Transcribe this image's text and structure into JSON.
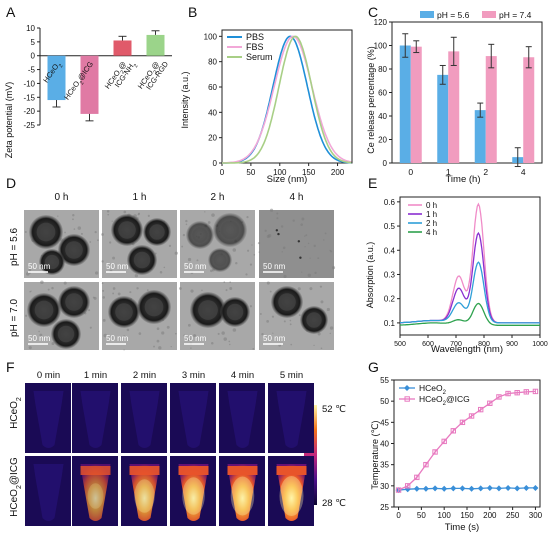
{
  "panel_letters": [
    "A",
    "B",
    "C",
    "D",
    "E",
    "F",
    "G"
  ],
  "colors": {
    "blue": "#5aaee6",
    "pink": "#e07aa4",
    "red": "#e05a6a",
    "green": "#9bd48a",
    "pbs": "#1f8fd8",
    "fbs": "#f2a8d8",
    "serum": "#a8cf86",
    "pink_bar": "#f19cbf",
    "h0": "#f08cc8",
    "h1": "#8a2fd0",
    "h2": "#2f9fd8",
    "h4": "#2ea24e",
    "heceo2_line": "#3a8fd8",
    "icg_line": "#e87ac0"
  },
  "chart_data": [
    {
      "panel": "A",
      "type": "bar",
      "ylabel": "Zeta potential (mV)",
      "ylim": [
        -25,
        10
      ],
      "yticks": [
        10,
        5,
        0,
        -5,
        -10,
        -15,
        -20,
        -25
      ],
      "categories": [
        "HCeO2",
        "HCeO2@ICG",
        "HCeO2@ ICG-NH2",
        "HCeO2@ ICG-RGD"
      ],
      "values": [
        -16,
        -21,
        5.5,
        7.5
      ],
      "errors": [
        2.5,
        2.5,
        1.5,
        1.5
      ],
      "grid": false
    },
    {
      "panel": "B",
      "type": "line",
      "xlabel": "Size (nm)",
      "ylabel": "Intensity (a.u.)",
      "xlim": [
        0,
        225
      ],
      "ylim": [
        0,
        105
      ],
      "xticks": [
        0,
        50,
        100,
        150,
        200
      ],
      "yticks": [
        0,
        20,
        40,
        60,
        80,
        100
      ],
      "legend_position": "top-left",
      "series": [
        {
          "name": "PBS",
          "peak": 118,
          "width": 42
        },
        {
          "name": "FBS",
          "peak": 123,
          "width": 46
        },
        {
          "name": "Serum",
          "peak": 127,
          "width": 40
        }
      ]
    },
    {
      "panel": "C",
      "type": "bar",
      "xlabel": "Time (h)",
      "ylabel": "Ce release percentage (%)",
      "ylim": [
        0,
        120
      ],
      "yticks": [
        0,
        20,
        40,
        60,
        80,
        100,
        120
      ],
      "categories": [
        "0",
        "1",
        "2",
        "4"
      ],
      "legend_position": "top",
      "series": [
        {
          "name": "pH = 5.6",
          "values": [
            100,
            75,
            45,
            5
          ],
          "errors": [
            10,
            8,
            6,
            8
          ]
        },
        {
          "name": "pH = 7.4",
          "values": [
            99,
            95,
            91,
            90
          ],
          "errors": [
            5,
            12,
            10,
            9
          ]
        }
      ]
    },
    {
      "panel": "E",
      "type": "line",
      "xlabel": "Wavelength (nm)",
      "ylabel": "Absorption (a.u.)",
      "xlim": [
        500,
        1000
      ],
      "ylim": [
        0.05,
        0.62
      ],
      "xticks": [
        500,
        600,
        700,
        800,
        900,
        1000
      ],
      "yticks": [
        0.1,
        0.2,
        0.3,
        0.4,
        0.5,
        0.6
      ],
      "legend_position": "top-left",
      "series": [
        {
          "name": "0 h",
          "base": 0.1,
          "peak": 0.59,
          "shoulder": 0.29
        },
        {
          "name": "1 h",
          "base": 0.1,
          "peak": 0.47,
          "shoulder": 0.24
        },
        {
          "name": "2 h",
          "base": 0.1,
          "peak": 0.35,
          "shoulder": 0.18
        },
        {
          "name": "4 h",
          "base": 0.09,
          "peak": 0.18,
          "shoulder": 0.11
        }
      ]
    },
    {
      "panel": "G",
      "type": "line",
      "xlabel": "Time (s)",
      "ylabel": "Temperature (℃)",
      "xlim": [
        -10,
        310
      ],
      "ylim": [
        25,
        55
      ],
      "xticks": [
        0,
        50,
        100,
        150,
        200,
        250,
        300
      ],
      "yticks": [
        25,
        30,
        35,
        40,
        45,
        50,
        55
      ],
      "legend_position": "top-left",
      "x": [
        0,
        20,
        40,
        60,
        80,
        100,
        120,
        140,
        160,
        180,
        200,
        220,
        240,
        260,
        280,
        300
      ],
      "series": [
        {
          "name": "HCeO2",
          "values": [
            29,
            29.2,
            29.3,
            29.3,
            29.4,
            29.3,
            29.4,
            29.4,
            29.3,
            29.4,
            29.5,
            29.4,
            29.5,
            29.4,
            29.5,
            29.5
          ]
        },
        {
          "name": "HCeO2@ICG",
          "values": [
            29,
            30,
            32,
            35,
            38,
            40.5,
            43,
            45,
            46.5,
            48,
            49.5,
            51,
            51.8,
            52,
            52.2,
            52.3
          ]
        }
      ]
    }
  ],
  "panelD": {
    "columns": [
      "0 h",
      "1 h",
      "2 h",
      "4 h"
    ],
    "rows": [
      "pH = 5.6",
      "pH = 7.0"
    ],
    "scale_label": "50 nm"
  },
  "panelF": {
    "columns": [
      "0 min",
      "1 min",
      "2 min",
      "3 min",
      "4 min",
      "5 min"
    ],
    "rows": [
      "HCeO2",
      "HCeO2@ICG"
    ],
    "colorbar_max": "52 ℃",
    "colorbar_min": "28 ℃",
    "intensity": [
      [
        0.05,
        0.08,
        0.1,
        0.12,
        0.12,
        0.1
      ],
      [
        0.05,
        0.55,
        0.8,
        0.92,
        0.97,
        1.0
      ]
    ]
  }
}
